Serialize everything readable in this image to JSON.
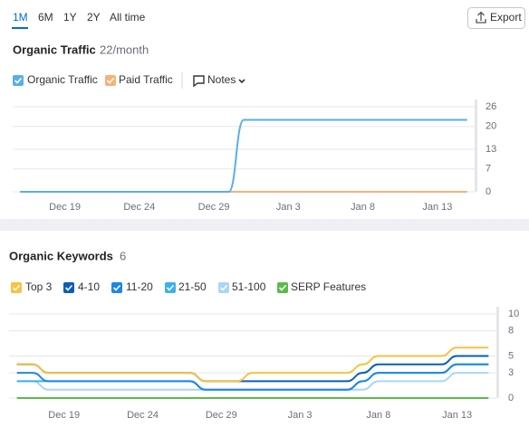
{
  "toolbar": {
    "periods": [
      "1M",
      "6M",
      "1Y",
      "2Y",
      "All time"
    ],
    "export": "Export"
  },
  "chart_data": [
    {
      "type": "line",
      "title": "Organic Traffic",
      "subtitle": "22/month",
      "notes": "Notes",
      "categories": [
        null,
        null,
        null,
        "Dec 19",
        null,
        null,
        null,
        null,
        "Dec 24",
        null,
        null,
        null,
        null,
        "Dec 29",
        null,
        null,
        null,
        null,
        "Jan 3",
        null,
        null,
        null,
        null,
        "Jan 8",
        null,
        null,
        null,
        null,
        "Jan 13",
        null,
        null
      ],
      "series": [
        {
          "name": "Organic Traffic",
          "color": "#5aaee8",
          "values": [
            0,
            0,
            0,
            0,
            0,
            0,
            0,
            0,
            0,
            0,
            0,
            0,
            0,
            0,
            0,
            22,
            22,
            22,
            22,
            22,
            22,
            22,
            22,
            22,
            22,
            22,
            22,
            22,
            22,
            22,
            22
          ]
        },
        {
          "name": "Paid Traffic",
          "color": "#f7b27a",
          "values": [
            0,
            0,
            0,
            0,
            0,
            0,
            0,
            0,
            0,
            0,
            0,
            0,
            0,
            0,
            0,
            0,
            0,
            0,
            0,
            0,
            0,
            0,
            0,
            0,
            0,
            0,
            0,
            0,
            0,
            0,
            0
          ]
        }
      ],
      "ylim": [
        0,
        26
      ],
      "yticks": [
        0,
        7,
        13,
        20,
        26
      ],
      "grid": true,
      "stacked": false
    },
    {
      "type": "line",
      "title": "Organic Keywords",
      "subtitle": "6",
      "categories": [
        null,
        null,
        null,
        "Dec 19",
        null,
        null,
        null,
        null,
        "Dec 24",
        null,
        null,
        null,
        null,
        "Dec 29",
        null,
        null,
        null,
        null,
        "Jan 3",
        null,
        null,
        null,
        null,
        "Jan 8",
        null,
        null,
        null,
        null,
        "Jan 13",
        null,
        null
      ],
      "series": [
        {
          "name": "Top 3",
          "color": "#f7c243",
          "values": [
            0,
            0,
            0,
            0,
            0,
            0,
            0,
            0,
            0,
            0,
            0,
            0,
            0,
            0,
            0,
            1,
            1,
            1,
            1,
            1,
            1,
            1,
            1,
            1,
            1,
            1,
            1,
            1,
            1,
            1,
            1
          ]
        },
        {
          "name": "4-10",
          "color": "#0d5db5",
          "values": [
            1,
            1,
            1,
            1,
            1,
            1,
            1,
            1,
            1,
            1,
            1,
            1,
            1,
            1,
            1,
            1,
            1,
            1,
            1,
            1,
            1,
            1,
            1,
            1,
            1,
            1,
            1,
            1,
            1,
            1,
            1
          ]
        },
        {
          "name": "11-20",
          "color": "#1e88e0",
          "values": [
            1,
            1,
            0,
            0,
            0,
            0,
            0,
            0,
            0,
            0,
            0,
            0,
            0,
            0,
            0,
            0,
            0,
            0,
            0,
            0,
            0,
            0,
            0,
            0,
            0,
            0,
            0,
            0,
            0,
            0,
            0
          ]
        },
        {
          "name": "21-50",
          "color": "#3cb0f0",
          "values": [
            0,
            0,
            1,
            1,
            1,
            1,
            1,
            1,
            1,
            1,
            1,
            1,
            0,
            0,
            0,
            0,
            0,
            0,
            0,
            0,
            0,
            0,
            1,
            1,
            1,
            1,
            1,
            1,
            1,
            1,
            1
          ]
        },
        {
          "name": "51-100",
          "color": "#a8d6f7",
          "values": [
            2,
            2,
            1,
            1,
            1,
            1,
            1,
            1,
            1,
            1,
            1,
            1,
            1,
            1,
            1,
            1,
            1,
            1,
            1,
            1,
            1,
            1,
            1,
            2,
            2,
            2,
            2,
            2,
            3,
            3,
            3
          ]
        },
        {
          "name": "SERP Features",
          "color": "#5bbb4a",
          "values": [
            0,
            0,
            0,
            0,
            0,
            0,
            0,
            0,
            0,
            0,
            0,
            0,
            0,
            0,
            0,
            0,
            0,
            0,
            0,
            0,
            0,
            0,
            0,
            0,
            0,
            0,
            0,
            0,
            0,
            0,
            0
          ]
        }
      ],
      "ylim": [
        0,
        10
      ],
      "yticks": [
        0,
        3,
        5,
        8,
        10
      ],
      "grid": true,
      "stacked": true
    }
  ]
}
